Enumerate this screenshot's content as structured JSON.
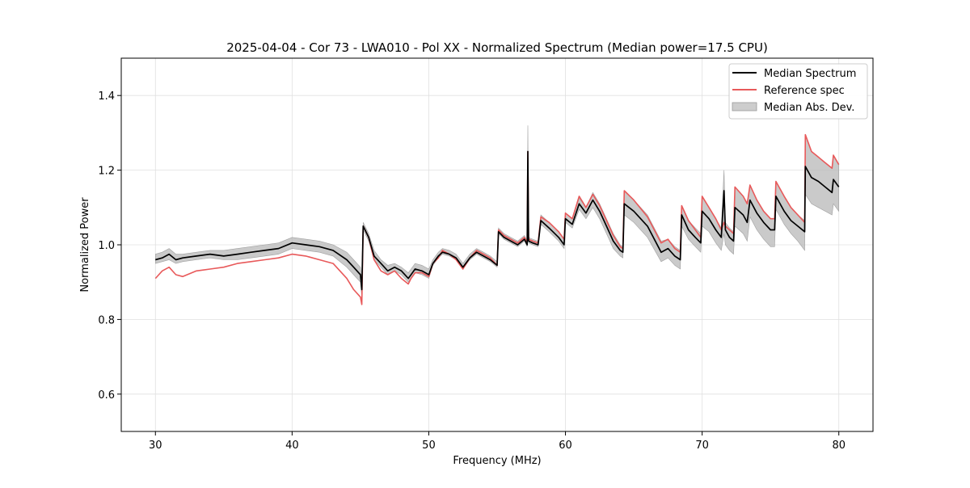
{
  "chart_data": {
    "type": "line",
    "title": "2025-04-04 - Cor 73 - LWA010 - Pol XX - Normalized Spectrum (Median power=17.5 CPU)",
    "xlabel": "Frequency (MHz)",
    "ylabel": "Normalized Power",
    "xlim": [
      27.5,
      82.5
    ],
    "ylim": [
      0.5,
      1.5
    ],
    "xticks": [
      30,
      40,
      50,
      60,
      70,
      80
    ],
    "yticks": [
      0.6,
      0.8,
      1.0,
      1.2,
      1.4
    ],
    "xtick_labels": [
      "30",
      "40",
      "50",
      "60",
      "70",
      "80"
    ],
    "ytick_labels": [
      "0.6",
      "0.8",
      "1.0",
      "1.2",
      "1.4"
    ],
    "grid": true,
    "legend_position": "top-right",
    "legend": {
      "median": "Median Spectrum",
      "reference": "Reference spec",
      "mad": "Median Abs. Dev."
    },
    "colors": {
      "median": "#000000",
      "reference": "#e8595a",
      "mad_fill": "#b8b8b8",
      "grid": "#e0e0e0"
    },
    "x": [
      30.0,
      30.5,
      31.0,
      31.5,
      32.0,
      33.0,
      34.0,
      35.0,
      36.0,
      37.0,
      38.0,
      39.0,
      40.0,
      41.0,
      42.0,
      43.0,
      44.0,
      44.5,
      45.0,
      45.1,
      45.2,
      45.6,
      46.0,
      46.5,
      47.0,
      47.5,
      48.0,
      48.5,
      48.7,
      49.0,
      49.5,
      50.0,
      50.3,
      50.7,
      51.0,
      51.5,
      52.0,
      52.5,
      53.0,
      53.5,
      54.0,
      54.5,
      55.0,
      55.1,
      55.5,
      56.0,
      56.5,
      57.0,
      57.2,
      57.25,
      57.3,
      57.6,
      58.0,
      58.2,
      58.8,
      59.5,
      59.9,
      60.0,
      60.5,
      61.0,
      61.5,
      62.0,
      62.5,
      63.0,
      63.5,
      64.0,
      64.2,
      64.3,
      65.0,
      66.0,
      67.0,
      67.5,
      68.0,
      68.4,
      68.5,
      69.0,
      69.5,
      69.9,
      70.0,
      70.5,
      71.0,
      71.4,
      71.6,
      71.7,
      72.0,
      72.3,
      72.4,
      73.0,
      73.3,
      73.5,
      74.0,
      74.5,
      75.0,
      75.3,
      75.4,
      76.0,
      76.5,
      77.0,
      77.5,
      77.55,
      78.0,
      78.5,
      79.0,
      79.5,
      79.6,
      80.0
    ],
    "series": [
      {
        "name": "Median Spectrum",
        "values": [
          0.96,
          0.965,
          0.975,
          0.96,
          0.965,
          0.97,
          0.975,
          0.97,
          0.975,
          0.98,
          0.985,
          0.99,
          1.005,
          1.0,
          0.995,
          0.985,
          0.96,
          0.94,
          0.92,
          0.88,
          1.05,
          1.02,
          0.97,
          0.95,
          0.93,
          0.94,
          0.93,
          0.91,
          0.92,
          0.935,
          0.93,
          0.92,
          0.95,
          0.97,
          0.98,
          0.975,
          0.965,
          0.94,
          0.965,
          0.98,
          0.97,
          0.96,
          0.945,
          1.035,
          1.02,
          1.01,
          1.0,
          1.015,
          1.0,
          1.25,
          1.01,
          1.005,
          1.0,
          1.065,
          1.045,
          1.02,
          1.0,
          1.07,
          1.055,
          1.11,
          1.085,
          1.12,
          1.09,
          1.05,
          1.01,
          0.985,
          0.98,
          1.11,
          1.09,
          1.05,
          0.98,
          0.99,
          0.97,
          0.96,
          1.08,
          1.04,
          1.02,
          1.005,
          1.09,
          1.07,
          1.04,
          1.02,
          1.145,
          1.04,
          1.02,
          1.01,
          1.1,
          1.08,
          1.06,
          1.12,
          1.085,
          1.06,
          1.04,
          1.04,
          1.13,
          1.09,
          1.065,
          1.05,
          1.035,
          1.21,
          1.18,
          1.17,
          1.155,
          1.14,
          1.175,
          1.155
        ]
      },
      {
        "name": "Reference spec",
        "values": [
          0.91,
          0.93,
          0.94,
          0.92,
          0.915,
          0.93,
          0.935,
          0.94,
          0.95,
          0.955,
          0.96,
          0.965,
          0.975,
          0.97,
          0.96,
          0.95,
          0.91,
          0.88,
          0.86,
          0.84,
          1.05,
          1.02,
          0.96,
          0.93,
          0.92,
          0.93,
          0.91,
          0.895,
          0.91,
          0.925,
          0.925,
          0.915,
          0.95,
          0.965,
          0.985,
          0.975,
          0.96,
          0.935,
          0.965,
          0.985,
          0.975,
          0.965,
          0.945,
          1.04,
          1.025,
          1.015,
          1.005,
          1.02,
          1.005,
          1.25,
          1.015,
          1.01,
          1.005,
          1.075,
          1.06,
          1.035,
          1.015,
          1.085,
          1.07,
          1.13,
          1.1,
          1.135,
          1.105,
          1.065,
          1.025,
          0.995,
          0.99,
          1.145,
          1.12,
          1.075,
          1.005,
          1.015,
          0.99,
          0.98,
          1.105,
          1.065,
          1.04,
          1.02,
          1.13,
          1.1,
          1.07,
          1.04,
          1.06,
          1.05,
          1.04,
          1.03,
          1.155,
          1.13,
          1.11,
          1.16,
          1.12,
          1.09,
          1.07,
          1.07,
          1.17,
          1.13,
          1.1,
          1.08,
          1.06,
          1.295,
          1.25,
          1.235,
          1.22,
          1.205,
          1.24,
          1.215
        ]
      },
      {
        "name": "Median Abs. Dev.",
        "lower": [
          0.95,
          0.955,
          0.96,
          0.95,
          0.955,
          0.96,
          0.965,
          0.96,
          0.96,
          0.965,
          0.97,
          0.975,
          0.99,
          0.985,
          0.98,
          0.97,
          0.94,
          0.92,
          0.9,
          0.86,
          1.04,
          1.01,
          0.96,
          0.94,
          0.92,
          0.93,
          0.92,
          0.9,
          0.91,
          0.925,
          0.92,
          0.91,
          0.945,
          0.965,
          0.975,
          0.97,
          0.96,
          0.935,
          0.96,
          0.975,
          0.965,
          0.955,
          0.94,
          1.03,
          1.015,
          1.005,
          0.995,
          1.01,
          0.995,
          1.24,
          1.005,
          1.0,
          0.995,
          1.055,
          1.035,
          1.01,
          0.99,
          1.06,
          1.045,
          1.095,
          1.07,
          1.1,
          1.07,
          1.03,
          0.99,
          0.97,
          0.965,
          1.08,
          1.06,
          1.02,
          0.955,
          0.965,
          0.945,
          0.935,
          1.05,
          1.015,
          0.995,
          0.98,
          1.05,
          1.035,
          1.005,
          0.985,
          1.03,
          1.0,
          0.985,
          0.975,
          1.05,
          1.03,
          1.01,
          1.075,
          1.04,
          1.015,
          0.995,
          0.995,
          1.095,
          1.055,
          1.03,
          1.01,
          0.985,
          1.135,
          1.11,
          1.1,
          1.09,
          1.08,
          1.11,
          1.09
        ],
        "upper": [
          0.975,
          0.98,
          0.99,
          0.975,
          0.975,
          0.98,
          0.985,
          0.985,
          0.99,
          0.995,
          1.0,
          1.005,
          1.02,
          1.015,
          1.01,
          1.0,
          0.98,
          0.96,
          0.94,
          0.9,
          1.06,
          1.03,
          0.985,
          0.96,
          0.945,
          0.95,
          0.94,
          0.925,
          0.935,
          0.95,
          0.945,
          0.935,
          0.96,
          0.98,
          0.99,
          0.985,
          0.975,
          0.95,
          0.975,
          0.99,
          0.98,
          0.97,
          0.955,
          1.045,
          1.03,
          1.02,
          1.01,
          1.025,
          1.01,
          1.32,
          1.02,
          1.015,
          1.01,
          1.08,
          1.06,
          1.035,
          1.015,
          1.085,
          1.07,
          1.125,
          1.1,
          1.14,
          1.11,
          1.07,
          1.03,
          1.0,
          0.995,
          1.145,
          1.12,
          1.08,
          1.01,
          1.015,
          0.995,
          0.985,
          1.105,
          1.065,
          1.045,
          1.03,
          1.13,
          1.1,
          1.07,
          1.045,
          1.2,
          1.06,
          1.045,
          1.035,
          1.155,
          1.13,
          1.11,
          1.16,
          1.12,
          1.09,
          1.07,
          1.07,
          1.17,
          1.13,
          1.1,
          1.08,
          1.065,
          1.295,
          1.25,
          1.235,
          1.22,
          1.205,
          1.24,
          1.215
        ]
      }
    ]
  }
}
